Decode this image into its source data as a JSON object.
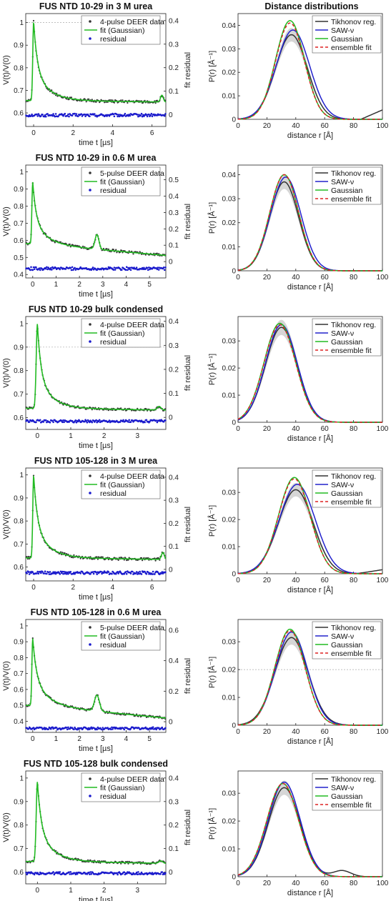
{
  "figure": {
    "column_headers": [
      "Distance distributions"
    ]
  },
  "chart_data": [
    {
      "type": "scatter",
      "title": "FUS NTD 10-29 in 3 M urea",
      "xlabel": "time t [µs]",
      "ylabel": "V(t)/V(0)",
      "y2label": "fit residual",
      "xlim": [
        -0.4,
        6.7
      ],
      "ylim": [
        0.54,
        1.04
      ],
      "y2lim": [
        -0.05,
        0.43
      ],
      "xticks": [
        0,
        2,
        4,
        6
      ],
      "yticks": [
        0.6,
        0.7,
        0.8,
        0.9,
        1
      ],
      "y2ticks": [
        0,
        0.1,
        0.2,
        0.3,
        0.4
      ],
      "legend": [
        "4-pulse DEER data",
        "fit (Gaussian)",
        "residual"
      ],
      "legend_position": "top-right",
      "series_colors": {
        "data": "#333333",
        "fit": "#22bb22",
        "residual": "#1a1acc"
      },
      "model": {
        "amplitude": 0.35,
        "offset": 0.655,
        "peak_width": 0.06,
        "decay_tau": 0.45,
        "drift": 0.001,
        "echo_position": 6.5,
        "echo_amplitude": 0.03,
        "echo_width": 0.1
      },
      "residual_ref": 0.59,
      "noise": 0.006,
      "dashed_ref_line": 1.0
    },
    {
      "type": "line",
      "xlabel": "distance r [Å]",
      "ylabel": "P(r) [Å⁻¹]",
      "xlim": [
        0,
        100
      ],
      "ylim": [
        0,
        0.045
      ],
      "xticks": [
        0,
        20,
        40,
        60,
        80,
        100
      ],
      "yticks": [
        0,
        0.01,
        0.02,
        0.03,
        0.04
      ],
      "legend": [
        "Tikhonov reg.",
        "SAW-ν",
        "Gaussian",
        "ensemble fit"
      ],
      "legend_position": "top-right",
      "series": [
        {
          "name": "Tikhonov reg.",
          "peak": 37,
          "sigma": 11,
          "height": 0.036,
          "color": "#333333"
        },
        {
          "name": "SAW-ν",
          "peak": 38,
          "sigma": 11.5,
          "height": 0.038,
          "color": "#2222cc"
        },
        {
          "name": "Gaussian",
          "peak": 36,
          "sigma": 10,
          "height": 0.042,
          "color": "#22bb22"
        },
        {
          "name": "ensemble fit",
          "peak": 36,
          "sigma": 10,
          "height": 0.041,
          "color": "#dd2222"
        }
      ],
      "tail": {
        "start": 85,
        "end": 100,
        "height": 0.004
      }
    },
    {
      "type": "scatter",
      "title": "FUS NTD 10-29 in 0.6 M urea",
      "xlabel": "time t [µs]",
      "ylabel": "V(t)/V(0)",
      "y2label": "fit residual",
      "xlim": [
        -0.3,
        5.7
      ],
      "ylim": [
        0.38,
        1.04
      ],
      "y2lim": [
        -0.1,
        0.59
      ],
      "xticks": [
        0,
        1,
        2,
        3,
        4,
        5
      ],
      "yticks": [
        0.4,
        0.5,
        0.6,
        0.7,
        0.8,
        0.9,
        1
      ],
      "y2ticks": [
        0,
        0.1,
        0.2,
        0.3,
        0.4,
        0.5
      ],
      "legend": [
        "5-pulse DEER data",
        "fit (Gaussian)",
        "residual"
      ],
      "legend_position": "top-right",
      "series_colors": {
        "data": "#333333",
        "fit": "#22bb22",
        "residual": "#1a1acc"
      },
      "model": {
        "amplitude": 0.36,
        "offset": 0.58,
        "peak_width": 0.05,
        "decay_tau": 0.35,
        "drift": 0.012,
        "echo_position": 2.75,
        "echo_amplitude": 0.085,
        "echo_width": 0.12
      },
      "residual_ref": 0.435,
      "noise": 0.008
    },
    {
      "type": "line",
      "xlabel": "distance r [Å]",
      "ylabel": "P(r) [Å⁻¹]",
      "xlim": [
        0,
        100
      ],
      "ylim": [
        0,
        0.044
      ],
      "xticks": [
        0,
        20,
        40,
        60,
        80,
        100
      ],
      "yticks": [
        0,
        0.01,
        0.02,
        0.03,
        0.04
      ],
      "legend": [
        "Tikhonov reg.",
        "SAW-ν",
        "Gaussian",
        "ensemble fit"
      ],
      "legend_position": "top-right",
      "series": [
        {
          "name": "Tikhonov reg.",
          "peak": 32,
          "sigma": 10,
          "height": 0.037,
          "color": "#333333"
        },
        {
          "name": "SAW-ν",
          "peak": 33,
          "sigma": 10.5,
          "height": 0.039,
          "color": "#2222cc"
        },
        {
          "name": "Gaussian",
          "peak": 32,
          "sigma": 10,
          "height": 0.04,
          "color": "#22bb22"
        },
        {
          "name": "ensemble fit",
          "peak": 32,
          "sigma": 10,
          "height": 0.04,
          "color": "#dd2222"
        }
      ]
    },
    {
      "type": "scatter",
      "title": "FUS NTD 10-29 bulk condensed",
      "xlabel": "time t [µs]",
      "ylabel": "V(t)/V(0)",
      "y2label": "fit residual",
      "xlim": [
        -0.35,
        3.85
      ],
      "ylim": [
        0.55,
        1.03
      ],
      "y2lim": [
        -0.05,
        0.42
      ],
      "xticks": [
        0,
        1,
        2,
        3
      ],
      "yticks": [
        0.6,
        0.7,
        0.8,
        0.9,
        1
      ],
      "y2ticks": [
        0,
        0.1,
        0.2,
        0.3,
        0.4
      ],
      "legend": [
        "4-pulse DEER data",
        "fit (Gaussian)",
        "residual"
      ],
      "legend_position": "top-right",
      "series_colors": {
        "data": "#333333",
        "fit": "#22bb22",
        "residual": "#1a1acc"
      },
      "model": {
        "amplitude": 0.36,
        "offset": 0.64,
        "peak_width": 0.05,
        "decay_tau": 0.25,
        "drift": 0.002,
        "echo_position": 3.65,
        "echo_amplitude": 0.015,
        "echo_width": 0.08
      },
      "residual_ref": 0.585,
      "noise": 0.005,
      "dashed_ref_line": 0.9
    },
    {
      "type": "line",
      "xlabel": "distance r [Å]",
      "ylabel": "P(r) [Å⁻¹]",
      "xlim": [
        0,
        100
      ],
      "ylim": [
        0,
        0.039
      ],
      "xticks": [
        0,
        20,
        40,
        60,
        80,
        100
      ],
      "yticks": [
        0,
        0.01,
        0.02,
        0.03
      ],
      "legend": [
        "Tikhonov reg.",
        "SAW-ν",
        "Gaussian",
        "ensemble fit"
      ],
      "legend_position": "top-right",
      "series": [
        {
          "name": "Tikhonov reg.",
          "peak": 30,
          "sigma": 11,
          "height": 0.035,
          "color": "#333333"
        },
        {
          "name": "SAW-ν",
          "peak": 30,
          "sigma": 11,
          "height": 0.036,
          "color": "#2222cc"
        },
        {
          "name": "Gaussian",
          "peak": 29,
          "sigma": 11,
          "height": 0.0365,
          "color": "#22bb22"
        },
        {
          "name": "ensemble fit",
          "peak": 29,
          "sigma": 11,
          "height": 0.036,
          "color": "#dd2222"
        }
      ]
    },
    {
      "type": "scatter",
      "title": "FUS NTD 105-128 in 3 M urea",
      "xlabel": "time t [µs]",
      "ylabel": "V(t)/V(0)",
      "y2label": "fit residual",
      "xlim": [
        -0.4,
        6.7
      ],
      "ylim": [
        0.54,
        1.03
      ],
      "y2lim": [
        -0.05,
        0.44
      ],
      "xticks": [
        0,
        2,
        4,
        6
      ],
      "yticks": [
        0.6,
        0.7,
        0.8,
        0.9,
        1
      ],
      "y2ticks": [
        0,
        0.1,
        0.2,
        0.3,
        0.4
      ],
      "legend": [
        "4-pulse DEER data",
        "fit (Gaussian)",
        "residual"
      ],
      "legend_position": "top-right",
      "series_colors": {
        "data": "#333333",
        "fit": "#22bb22",
        "residual": "#1a1acc"
      },
      "model": {
        "amplitude": 0.36,
        "offset": 0.64,
        "peak_width": 0.06,
        "decay_tau": 0.45,
        "drift": 0.001,
        "echo_position": 6.55,
        "echo_amplitude": 0.03,
        "echo_width": 0.1
      },
      "residual_ref": 0.575,
      "noise": 0.006
    },
    {
      "type": "line",
      "xlabel": "distance r [Å]",
      "ylabel": "P(r) [Å⁻¹]",
      "xlim": [
        0,
        100
      ],
      "ylim": [
        0,
        0.039
      ],
      "xticks": [
        0,
        20,
        40,
        60,
        80,
        100
      ],
      "yticks": [
        0,
        0.01,
        0.02,
        0.03
      ],
      "legend": [
        "Tikhonov reg.",
        "SAW-ν",
        "Gaussian",
        "ensemble fit"
      ],
      "legend_position": "top-right",
      "series": [
        {
          "name": "Tikhonov reg.",
          "peak": 40,
          "sigma": 12,
          "height": 0.031,
          "color": "#333333"
        },
        {
          "name": "SAW-ν",
          "peak": 41,
          "sigma": 12.5,
          "height": 0.033,
          "color": "#2222cc"
        },
        {
          "name": "Gaussian",
          "peak": 39,
          "sigma": 11,
          "height": 0.0355,
          "color": "#22bb22"
        },
        {
          "name": "ensemble fit",
          "peak": 39,
          "sigma": 11,
          "height": 0.035,
          "color": "#dd2222"
        }
      ],
      "tail": {
        "start": 82,
        "end": 100,
        "height": 0.0015
      }
    },
    {
      "type": "scatter",
      "title": "FUS NTD 105-128 in 0.6 M urea",
      "xlabel": "time t [µs]",
      "ylabel": "V(t)/V(0)",
      "y2label": "fit residual",
      "xlim": [
        -0.3,
        5.7
      ],
      "ylim": [
        0.33,
        1.04
      ],
      "y2lim": [
        -0.07,
        0.67
      ],
      "xticks": [
        0,
        1,
        2,
        3,
        4,
        5
      ],
      "yticks": [
        0.4,
        0.5,
        0.6,
        0.7,
        0.8,
        0.9,
        1
      ],
      "y2ticks": [
        0,
        0.2,
        0.4,
        0.6
      ],
      "legend": [
        "5-pulse DEER data",
        "fit (Gaussian)",
        "residual"
      ],
      "legend_position": "top-right",
      "series_colors": {
        "data": "#333333",
        "fit": "#22bb22",
        "residual": "#1a1acc"
      },
      "model": {
        "amplitude": 0.42,
        "offset": 0.5,
        "peak_width": 0.05,
        "decay_tau": 0.4,
        "drift": 0.014,
        "echo_position": 2.75,
        "echo_amplitude": 0.1,
        "echo_width": 0.15
      },
      "residual_ref": 0.355,
      "noise": 0.007
    },
    {
      "type": "line",
      "xlabel": "distance r [Å]",
      "ylabel": "P(r) [Å⁻¹]",
      "xlim": [
        0,
        100
      ],
      "ylim": [
        0,
        0.038
      ],
      "xticks": [
        0,
        20,
        40,
        60,
        80,
        100
      ],
      "yticks": [
        0,
        0.01,
        0.02,
        0.03
      ],
      "legend": [
        "Tikhonov reg.",
        "SAW-ν",
        "Gaussian",
        "ensemble fit"
      ],
      "legend_position": "top-right",
      "series": [
        {
          "name": "Tikhonov reg.",
          "peak": 37,
          "sigma": 11.5,
          "height": 0.0315,
          "color": "#333333"
        },
        {
          "name": "SAW-ν",
          "peak": 37,
          "sigma": 11,
          "height": 0.0335,
          "color": "#2222cc"
        },
        {
          "name": "Gaussian",
          "peak": 36,
          "sigma": 10.5,
          "height": 0.0345,
          "color": "#22bb22"
        },
        {
          "name": "ensemble fit",
          "peak": 36,
          "sigma": 10.5,
          "height": 0.034,
          "color": "#dd2222"
        }
      ],
      "dashed_ref_line": 0.02
    },
    {
      "type": "scatter",
      "title": "FUS NTD 105-128 bulk condensed",
      "xlabel": "time t [µs]",
      "ylabel": "V(t)/V(0)",
      "y2label": "fit residual",
      "xlim": [
        -0.35,
        3.85
      ],
      "ylim": [
        0.55,
        1.03
      ],
      "y2lim": [
        -0.05,
        0.43
      ],
      "xticks": [
        0,
        1,
        2,
        3
      ],
      "yticks": [
        0.6,
        0.7,
        0.8,
        0.9,
        1
      ],
      "y2ticks": [
        0,
        0.1,
        0.2,
        0.3,
        0.4
      ],
      "legend": [
        "4-pulse DEER data",
        "fit (Gaussian)",
        "residual"
      ],
      "legend_position": "top-right",
      "series_colors": {
        "data": "#333333",
        "fit": "#22bb22",
        "residual": "#1a1acc"
      },
      "model": {
        "amplitude": 0.34,
        "offset": 0.645,
        "peak_width": 0.05,
        "decay_tau": 0.28,
        "drift": 0.002,
        "echo_position": 3.7,
        "echo_amplitude": 0.01,
        "echo_width": 0.08
      },
      "residual_ref": 0.595,
      "noise": 0.005
    },
    {
      "type": "line",
      "xlabel": "distance r [Å]",
      "ylabel": "P(r) [Å⁻¹]",
      "xlim": [
        0,
        100
      ],
      "ylim": [
        0,
        0.038
      ],
      "xticks": [
        0,
        20,
        40,
        60,
        80,
        100
      ],
      "yticks": [
        0,
        0.01,
        0.02,
        0.03
      ],
      "legend": [
        "Tikhonov reg.",
        "SAW-ν",
        "Gaussian",
        "ensemble fit"
      ],
      "legend_position": "top-right",
      "series": [
        {
          "name": "Tikhonov reg.",
          "peak": 32,
          "sigma": 11,
          "height": 0.032,
          "color": "#333333"
        },
        {
          "name": "SAW-ν",
          "peak": 32,
          "sigma": 11,
          "height": 0.034,
          "color": "#2222cc"
        },
        {
          "name": "Gaussian",
          "peak": 31,
          "sigma": 11,
          "height": 0.0335,
          "color": "#22bb22"
        },
        {
          "name": "ensemble fit",
          "peak": 31,
          "sigma": 11,
          "height": 0.0335,
          "color": "#dd2222"
        }
      ],
      "tail": {
        "start": 60,
        "end": 85,
        "height": 0.0022,
        "center": 72
      }
    }
  ]
}
